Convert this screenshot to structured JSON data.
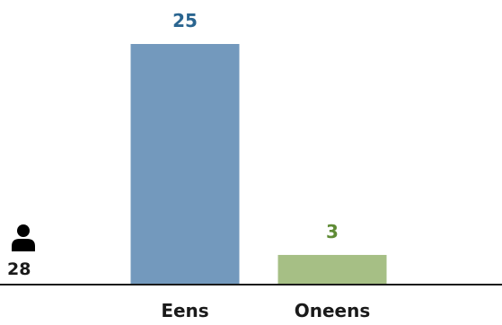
{
  "chart_data": {
    "type": "bar",
    "title": "",
    "xlabel": "",
    "ylabel": "",
    "categories": [
      "Eens",
      "Oneens"
    ],
    "values": [
      25,
      3
    ],
    "colors": [
      "#7399bd",
      "#a6bf85"
    ],
    "label_colors": [
      "#2a6590",
      "#5f8b35"
    ],
    "ylim": [
      0,
      25
    ],
    "grid": false,
    "legend": "none",
    "total": {
      "icon": "person-icon",
      "value": "28"
    }
  }
}
